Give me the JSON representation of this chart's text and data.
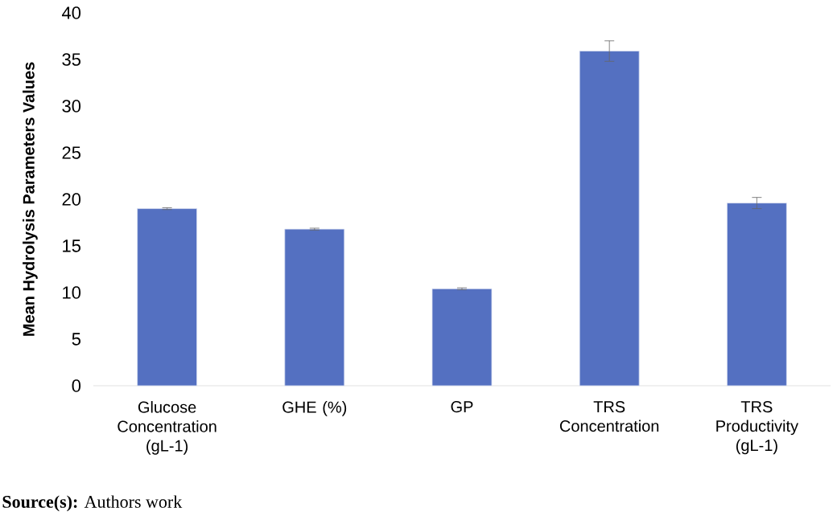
{
  "chart_data": {
    "type": "bar",
    "ylabel": "Mean Hydrolysis Parameters Values",
    "categories": [
      "Glucose Concentration (gL-1)",
      "GHE (%)",
      "GP",
      "TRS Concentration",
      "TRS Productivity (gL-1)"
    ],
    "values": [
      19.0,
      16.8,
      10.4,
      35.9,
      19.6
    ],
    "errors": [
      0.1,
      0.1,
      0.1,
      1.1,
      0.6
    ],
    "color": "#5470c1",
    "ylim": [
      0,
      40
    ],
    "yticks": [
      0,
      5,
      10,
      15,
      20,
      25,
      30,
      35,
      40
    ],
    "annotations": [
      "**Source(s):** Authors work"
    ]
  }
}
